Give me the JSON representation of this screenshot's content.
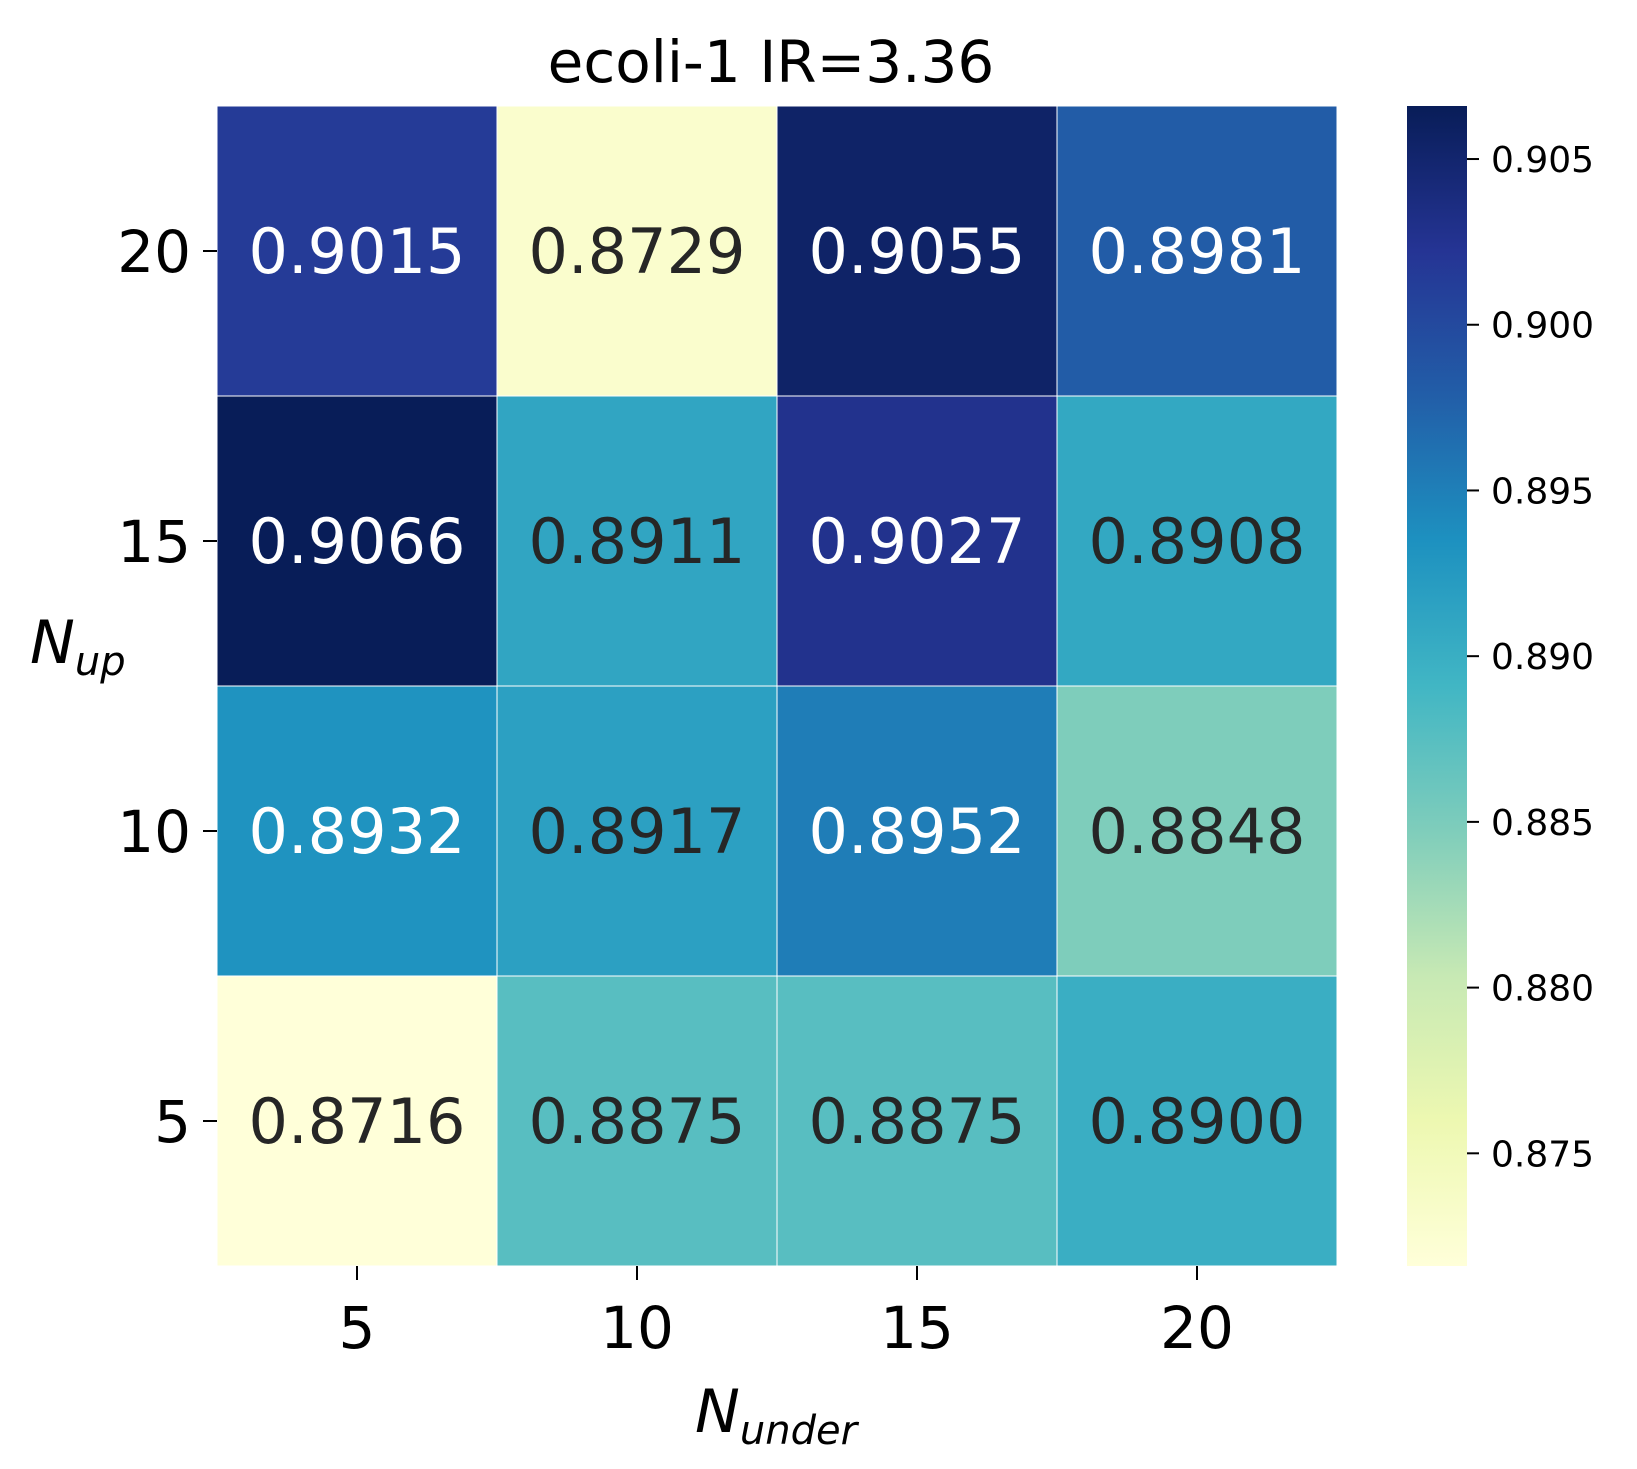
{
  "chart_data": {
    "type": "heatmap",
    "title": "ecoli-1 IR=3.36",
    "xlabel": {
      "base": "N",
      "sub": "under"
    },
    "ylabel": {
      "base": "N",
      "sub": "up"
    },
    "x_categories": [
      "5",
      "10",
      "15",
      "20"
    ],
    "y_categories_top_to_bottom": [
      "20",
      "15",
      "10",
      "5"
    ],
    "values_top_to_bottom": [
      [
        0.9015,
        0.8729,
        0.9055,
        0.8981
      ],
      [
        0.9066,
        0.8911,
        0.9027,
        0.8908
      ],
      [
        0.8932,
        0.8917,
        0.8952,
        0.8848
      ],
      [
        0.8716,
        0.8875,
        0.8875,
        0.89
      ]
    ],
    "cell_text_top_to_bottom": [
      [
        "0.9015",
        "0.8729",
        "0.9055",
        "0.8981"
      ],
      [
        "0.9066",
        "0.8911",
        "0.9027",
        "0.8908"
      ],
      [
        "0.8932",
        "0.8917",
        "0.8952",
        "0.8848"
      ],
      [
        "0.8716",
        "0.8875",
        "0.8875",
        "0.8900"
      ]
    ],
    "colorbar": {
      "cmap": "YlGnBu",
      "vmin": 0.8716,
      "vmax": 0.9066,
      "ticks": [
        0.875,
        0.88,
        0.885,
        0.89,
        0.895,
        0.9,
        0.905
      ],
      "tick_labels": [
        "0.875",
        "0.880",
        "0.885",
        "0.890",
        "0.895",
        "0.900",
        "0.905"
      ]
    },
    "colormap_stops": [
      "#ffffd9",
      "#edf8b1",
      "#c7e9b4",
      "#7fcdbb",
      "#41b6c4",
      "#1d91c0",
      "#225ea8",
      "#253494",
      "#081d58"
    ]
  }
}
